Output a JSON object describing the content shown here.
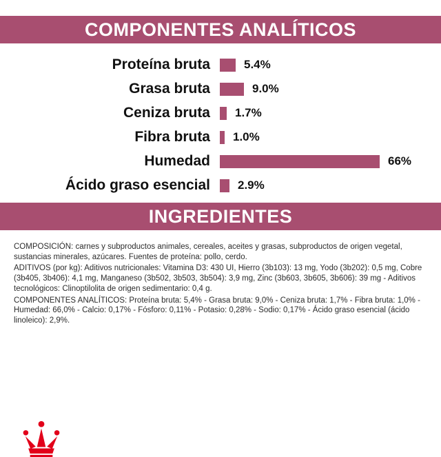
{
  "banners": {
    "analytical": "COMPONENTES ANALÍTICOS",
    "ingredients": "INGREDIENTES"
  },
  "chart_data": {
    "type": "bar",
    "orientation": "horizontal",
    "title": "COMPONENTES ANALÍTICOS",
    "categories": [
      "Proteína bruta",
      "Grasa bruta",
      "Ceniza bruta",
      "Fibra bruta",
      "Humedad",
      "Ácido graso esencial"
    ],
    "values": [
      5.4,
      9.0,
      1.7,
      1.0,
      66,
      2.9
    ],
    "value_labels": [
      "5.4%",
      "9.0%",
      "1.7%",
      "1.0%",
      "66%",
      "2.9%"
    ],
    "xlim": [
      0,
      66
    ],
    "bar_color": "#a84e70",
    "legend": "none",
    "grid": "off"
  },
  "ingredients_text": {
    "composition": "COMPOSICIÓN: carnes y subproductos animales, cereales, aceites y grasas, subproductos de origen vegetal, sustancias minerales, azúcares. Fuentes de proteína: pollo, cerdo.",
    "additives": "ADITIVOS (por kg): Aditivos nutricionales: Vitamina D3: 430 UI, Hierro (3b103): 13 mg, Yodo (3b202): 0,5 mg, Cobre (3b405, 3b406): 4,1 mg, Manganeso (3b502, 3b503, 3b504): 3,9 mg, Zinc (3b603, 3b605, 3b606): 39 mg - Aditivos tecnológicos: Clinoptilolita de origen sedimentario: 0,4 g.",
    "analytical_components": "COMPONENTES ANALÍTICOS: Proteína bruta: 5,4% - Grasa bruta: 9,0% - Ceniza bruta: 1,7% - Fibra bruta: 1,0% - Humedad: 66,0% - Calcio: 0,17% - Fósforo: 0,11% - Potasio: 0,28% - Sodio: 0,17% - Ácido graso esencial (ácido linoleico): 2,9%."
  },
  "colors": {
    "banner": "#a84e70",
    "bar": "#a84e70",
    "logo_red": "#e2001a"
  },
  "footer": {
    "brand_logo": "royal-canin-crown"
  }
}
